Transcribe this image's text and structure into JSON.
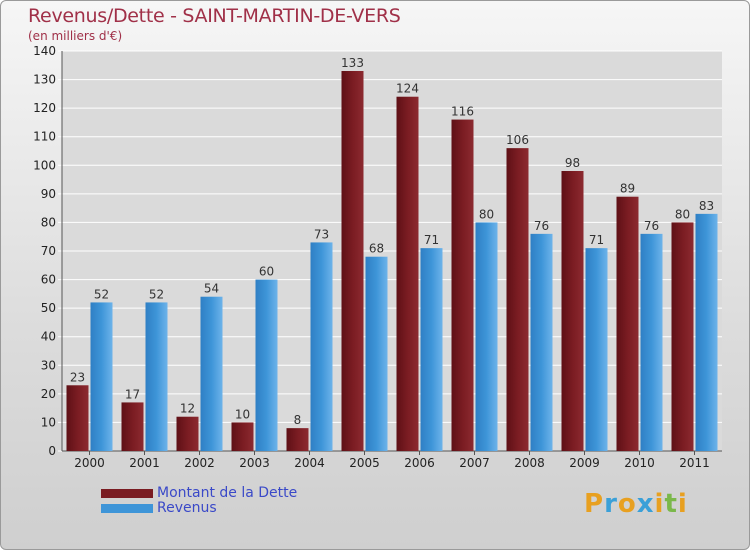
{
  "colors": {
    "debt": "#7a1c22",
    "revenue": "#3e95d8",
    "title": "#a03048",
    "legend_text": "#3a49c8"
  },
  "chart_data": {
    "type": "bar",
    "title": "Revenus/Dette - SAINT-MARTIN-DE-VERS",
    "subtitle": "(en milliers d'€)",
    "xlabel": "",
    "ylabel": "",
    "ylim": [
      0,
      140
    ],
    "yticks": [
      0,
      10,
      20,
      30,
      40,
      50,
      60,
      70,
      80,
      90,
      100,
      110,
      120,
      130,
      140
    ],
    "grid": true,
    "categories": [
      "2000",
      "2001",
      "2002",
      "2003",
      "2004",
      "2005",
      "2006",
      "2007",
      "2008",
      "2009",
      "2010",
      "2011"
    ],
    "series": [
      {
        "name": "Montant de la Dette",
        "values": [
          23,
          17,
          12,
          10,
          8,
          133,
          124,
          116,
          106,
          98,
          89,
          80
        ]
      },
      {
        "name": "Revenus",
        "values": [
          52,
          52,
          54,
          60,
          73,
          68,
          71,
          80,
          76,
          71,
          76,
          83
        ]
      }
    ],
    "legend": [
      "Montant de la Dette",
      "Revenus"
    ],
    "legend_position": "bottom-left"
  },
  "logo": {
    "letters": [
      "P",
      "r",
      "o",
      "x",
      "i",
      "t",
      "i"
    ]
  }
}
